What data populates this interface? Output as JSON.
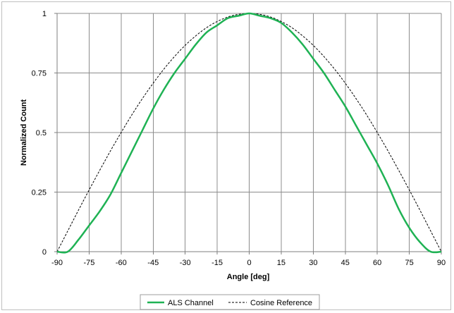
{
  "chart_data": {
    "type": "line",
    "title": "",
    "xlabel": "Angle [deg]",
    "ylabel": "Normalized Count",
    "xlim": [
      -90,
      90
    ],
    "ylim": [
      0,
      1
    ],
    "x_ticks": [
      -90,
      -75,
      -60,
      -45,
      -30,
      -15,
      0,
      15,
      30,
      45,
      60,
      75,
      90
    ],
    "x_tick_labels": [
      "-90",
      "-75",
      "-60",
      "-45",
      "-30",
      "-15",
      "0",
      "15",
      "30",
      "45",
      "60",
      "75",
      "90"
    ],
    "y_ticks": [
      0,
      0.25,
      0.5,
      0.75,
      1
    ],
    "y_tick_labels": [
      "0",
      "0.25",
      "0.5",
      "0.75",
      "1"
    ],
    "grid": true,
    "legend_position": "bottom",
    "series": [
      {
        "name": "ALS Channel",
        "color": "#1fb254",
        "style": "solid",
        "x": [
          -90,
          -85,
          -80,
          -75,
          -70,
          -65,
          -60,
          -55,
          -50,
          -45,
          -40,
          -35,
          -30,
          -25,
          -20,
          -15,
          -10,
          -5,
          0,
          5,
          10,
          15,
          20,
          25,
          30,
          35,
          40,
          45,
          50,
          55,
          60,
          65,
          70,
          75,
          80,
          85,
          90
        ],
        "y": [
          0,
          0,
          0.05,
          0.11,
          0.17,
          0.24,
          0.33,
          0.42,
          0.51,
          0.6,
          0.68,
          0.75,
          0.81,
          0.87,
          0.92,
          0.95,
          0.98,
          0.99,
          1.0,
          0.99,
          0.98,
          0.96,
          0.92,
          0.87,
          0.81,
          0.75,
          0.68,
          0.61,
          0.53,
          0.45,
          0.37,
          0.28,
          0.18,
          0.1,
          0.04,
          0,
          0
        ]
      },
      {
        "name": "Cosine Reference",
        "color": "#000000",
        "style": "dashed",
        "x": [
          -90,
          -85,
          -80,
          -75,
          -70,
          -65,
          -60,
          -55,
          -50,
          -45,
          -40,
          -35,
          -30,
          -25,
          -20,
          -15,
          -10,
          -5,
          0,
          5,
          10,
          15,
          20,
          25,
          30,
          35,
          40,
          45,
          50,
          55,
          60,
          65,
          70,
          75,
          80,
          85,
          90
        ],
        "y": [
          0,
          0.087,
          0.174,
          0.259,
          0.342,
          0.423,
          0.5,
          0.574,
          0.643,
          0.707,
          0.766,
          0.819,
          0.866,
          0.906,
          0.94,
          0.966,
          0.985,
          0.996,
          1.0,
          0.996,
          0.985,
          0.966,
          0.94,
          0.906,
          0.866,
          0.819,
          0.766,
          0.707,
          0.643,
          0.574,
          0.5,
          0.423,
          0.342,
          0.259,
          0.174,
          0.087,
          0
        ]
      }
    ]
  }
}
